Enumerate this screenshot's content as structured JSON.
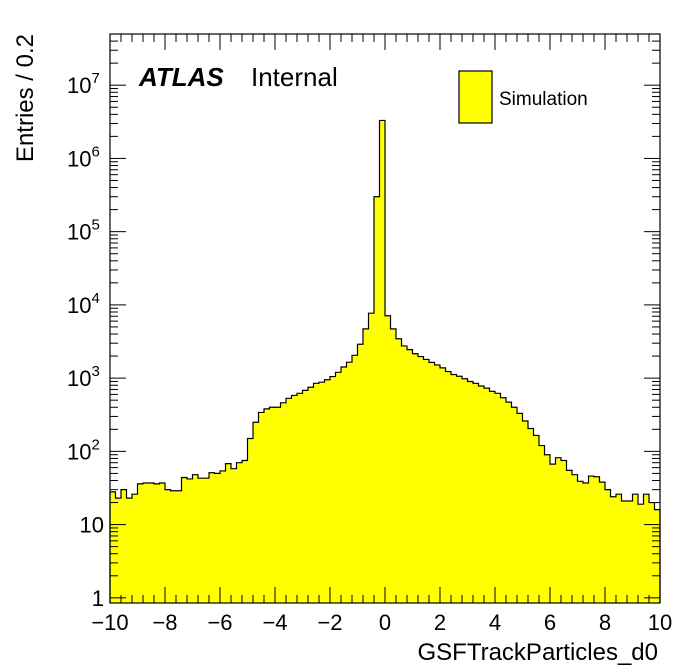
{
  "chart_data": {
    "type": "bar",
    "title": "",
    "xlabel": "GSFTrackParticles_d0",
    "ylabel": "Entries / 0.2",
    "xlim": [
      -10,
      10
    ],
    "ylim": [
      0.85,
      50000000
    ],
    "log_y": true,
    "bin_width": 0.2,
    "x_ticks": [
      "−10",
      "−8",
      "−6",
      "−4",
      "−2",
      "0",
      "2",
      "4",
      "6",
      "8",
      "10"
    ],
    "x_tick_values": [
      -10,
      -8,
      -6,
      -4,
      -2,
      0,
      2,
      4,
      6,
      8,
      10
    ],
    "y_ticks": [
      {
        "value": 1,
        "base": "1",
        "exp": ""
      },
      {
        "value": 10,
        "base": "10",
        "exp": ""
      },
      {
        "value": 100,
        "base": "10",
        "exp": "2"
      },
      {
        "value": 1000,
        "base": "10",
        "exp": "3"
      },
      {
        "value": 10000,
        "base": "10",
        "exp": "4"
      },
      {
        "value": 100000,
        "base": "10",
        "exp": "5"
      },
      {
        "value": 1000000,
        "base": "10",
        "exp": "6"
      },
      {
        "value": 10000000,
        "base": "10",
        "exp": "7"
      }
    ],
    "fill_color": "#ffff00",
    "line_color": "#000000",
    "label_main": "ATLAS",
    "label_sub": "Internal",
    "legend_position": "top-right",
    "series": [
      {
        "name": "Simulation",
        "bin_low_edges": [
          -10.0,
          -9.8,
          -9.6,
          -9.4,
          -9.2,
          -9.0,
          -8.8,
          -8.6,
          -8.4,
          -8.2,
          -8.0,
          -7.8,
          -7.6,
          -7.4,
          -7.2,
          -7.0,
          -6.8,
          -6.6,
          -6.4,
          -6.2,
          -6.0,
          -5.8,
          -5.6,
          -5.4,
          -5.2,
          -5.0,
          -4.8,
          -4.6,
          -4.4,
          -4.2,
          -4.0,
          -3.8,
          -3.6,
          -3.4,
          -3.2,
          -3.0,
          -2.8,
          -2.6,
          -2.4,
          -2.2,
          -2.0,
          -1.8,
          -1.6,
          -1.4,
          -1.2,
          -1.0,
          -0.8,
          -0.6,
          -0.4,
          -0.2,
          0.0,
          0.2,
          0.4,
          0.6,
          0.8,
          1.0,
          1.2,
          1.4,
          1.6,
          1.8,
          2.0,
          2.2,
          2.4,
          2.6,
          2.8,
          3.0,
          3.2,
          3.4,
          3.6,
          3.8,
          4.0,
          4.2,
          4.4,
          4.6,
          4.8,
          5.0,
          5.2,
          5.4,
          5.6,
          5.8,
          6.0,
          6.2,
          6.4,
          6.6,
          6.8,
          7.0,
          7.2,
          7.4,
          7.6,
          7.8,
          8.0,
          8.2,
          8.4,
          8.6,
          8.8,
          9.0,
          9.2,
          9.4,
          9.6,
          9.8
        ],
        "values": [
          28,
          23,
          30,
          23,
          26,
          36,
          37,
          37,
          36,
          37,
          30,
          29,
          29,
          44,
          42,
          48,
          43,
          43,
          51,
          50,
          54,
          68,
          58,
          70,
          75,
          150,
          250,
          340,
          380,
          400,
          400,
          460,
          530,
          580,
          620,
          680,
          750,
          850,
          880,
          950,
          1050,
          1200,
          1420,
          1650,
          2050,
          2900,
          4700,
          7700,
          300000,
          3300000,
          7100,
          4700,
          3450,
          2750,
          2450,
          2150,
          1970,
          1800,
          1640,
          1510,
          1380,
          1230,
          1120,
          1060,
          980,
          900,
          850,
          780,
          730,
          660,
          620,
          540,
          470,
          400,
          330,
          260,
          205,
          165,
          120,
          90,
          67,
          82,
          75,
          55,
          48,
          39,
          37,
          46,
          45,
          38,
          30,
          24,
          26,
          21,
          21,
          26,
          19,
          26,
          20,
          16
        ]
      }
    ]
  }
}
